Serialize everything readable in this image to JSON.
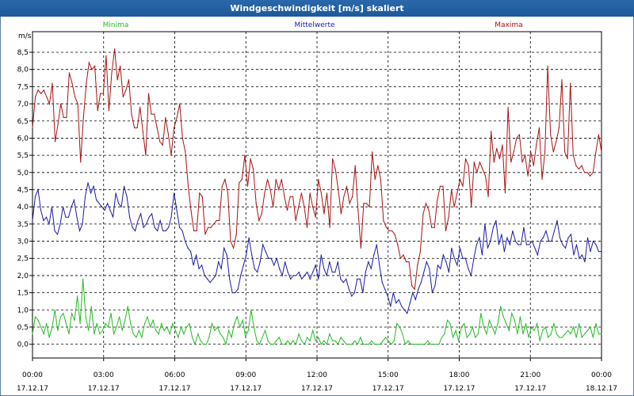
{
  "window": {
    "title": "Windgeschwindigkeit [m/s] skaliert"
  },
  "chart_data": {
    "type": "line",
    "title": "Windgeschwindigkeit [m/s] skaliert",
    "ylabel": "m/s",
    "xlabel": "",
    "ylim": [
      -0.4,
      9.1
    ],
    "xlim": [
      0,
      24
    ],
    "y_ticks": [
      "0,0",
      "0,5",
      "1,0",
      "1,5",
      "2,0",
      "2,5",
      "3,0",
      "3,5",
      "4,0",
      "4,5",
      "5,0",
      "5,5",
      "6,0",
      "6,5",
      "7,0",
      "7,5",
      "8,0",
      "8,5"
    ],
    "x_ticks": [
      {
        "time": "00:00",
        "date": "17.12.17"
      },
      {
        "time": "03:00",
        "date": "17.12.17"
      },
      {
        "time": "06:00",
        "date": "17.12.17"
      },
      {
        "time": "09:00",
        "date": "17.12.17"
      },
      {
        "time": "12:00",
        "date": "17.12.17"
      },
      {
        "time": "15:00",
        "date": "17.12.17"
      },
      {
        "time": "18:00",
        "date": "17.12.17"
      },
      {
        "time": "21:00",
        "date": "17.12.17"
      },
      {
        "time": "00:00",
        "date": "18.12.17"
      }
    ],
    "grid": true,
    "legend": "top",
    "series": [
      {
        "name": "Minima",
        "color": "#22bb22",
        "values": [
          0.3,
          0.8,
          0.7,
          0.5,
          0.3,
          0.6,
          0.2,
          0.5,
          1.0,
          0.4,
          0.8,
          0.9,
          0.6,
          0.3,
          0.9,
          0.7,
          1.4,
          0.6,
          1.9,
          0.8,
          0.4,
          1.1,
          0.3,
          0.6,
          0.3,
          0.4,
          0.6,
          0.5,
          0.9,
          0.3,
          0.5,
          0.8,
          0.4,
          0.7,
          1.1,
          0.6,
          0.3,
          0.2,
          0.4,
          0.2,
          0.6,
          0.8,
          0.5,
          0.7,
          0.4,
          0.3,
          0.6,
          0.4,
          0.5,
          0.3,
          0.6,
          0.4,
          0.2,
          0.5,
          0.3,
          0.5,
          0.6,
          0.2,
          0.0,
          0.3,
          0.1,
          0.0,
          0.0,
          0.2,
          0.6,
          0.4,
          0.5,
          0.3,
          0.2,
          0.0,
          0.4,
          0.2,
          0.6,
          0.8,
          0.5,
          0.7,
          0.2,
          0.4,
          1.0,
          0.5,
          0.1,
          0.0,
          0.2,
          0.4,
          0.1,
          0.0,
          0.0,
          0.1,
          0.2,
          0.0,
          0.0,
          0.1,
          0.0,
          0.1,
          0.0,
          0.3,
          0.1,
          0.0,
          0.2,
          0.1,
          0.4,
          0.1,
          0.2,
          0.0,
          0.1,
          0.0,
          0.3,
          0.1,
          0.1,
          0.0,
          0.2,
          0.1,
          0.0,
          0.0,
          0.0,
          0.1,
          0.0,
          0.2,
          0.0,
          0.0,
          0.0,
          0.1,
          0.0,
          0.0,
          0.0,
          0.1,
          0.2,
          0.1,
          0.0,
          0.1,
          0.6,
          0.5,
          0.3,
          0.0,
          0.1,
          0.0,
          0.0,
          0.0,
          0.0,
          0.0,
          0.0,
          0.1,
          0.0,
          0.0,
          0.0,
          0.0,
          0.2,
          0.3,
          0.7,
          0.6,
          0.2,
          0.4,
          0.1,
          0.5,
          0.6,
          0.2,
          0.3,
          0.5,
          0.2,
          0.3,
          0.9,
          0.5,
          0.3,
          0.7,
          0.5,
          0.3,
          0.6,
          1.1,
          0.8,
          0.6,
          0.4,
          0.9,
          0.7,
          0.3,
          0.8,
          0.3,
          0.6,
          0.2,
          0.5,
          0.4,
          0.6,
          0.1,
          0.4,
          0.5,
          0.2,
          0.3,
          0.6,
          0.3,
          0.2,
          0.2,
          0.3,
          0.4,
          0.3,
          0.5,
          0.2,
          0.6,
          0.2,
          0.3,
          0.4,
          0.5,
          0.2,
          0.6,
          0.3,
          0.3
        ]
      },
      {
        "name": "Mittelwerte",
        "color": "#1a1aa8",
        "values": [
          3.6,
          4.3,
          4.5,
          3.9,
          3.6,
          3.7,
          3.5,
          4.0,
          3.3,
          3.2,
          3.5,
          4.0,
          3.7,
          3.7,
          4.0,
          4.2,
          3.7,
          3.3,
          3.5,
          4.3,
          4.7,
          4.4,
          4.6,
          4.2,
          4.1,
          4.0,
          3.9,
          4.1,
          3.9,
          3.7,
          4.4,
          4.1,
          4.0,
          4.6,
          4.3,
          3.7,
          3.4,
          3.3,
          3.6,
          3.8,
          3.4,
          3.5,
          3.7,
          3.8,
          3.4,
          3.3,
          3.6,
          3.3,
          3.3,
          3.4,
          3.7,
          4.4,
          3.9,
          3.4,
          3.3,
          3.0,
          2.8,
          2.7,
          2.3,
          2.6,
          2.2,
          2.3,
          2.0,
          1.9,
          1.8,
          1.9,
          2.0,
          2.4,
          2.2,
          2.8,
          2.6,
          1.9,
          1.5,
          1.5,
          1.6,
          2.0,
          2.3,
          2.6,
          3.1,
          2.6,
          2.2,
          2.1,
          2.4,
          2.9,
          2.7,
          2.5,
          2.5,
          2.3,
          2.5,
          2.2,
          2.0,
          2.4,
          2.1,
          1.9,
          2.0,
          2.0,
          2.1,
          1.9,
          2.0,
          2.1,
          1.9,
          2.1,
          2.3,
          1.9,
          2.6,
          2.2,
          2.0,
          2.4,
          2.1,
          2.1,
          2.4,
          1.9,
          1.8,
          1.9,
          1.6,
          1.4,
          1.5,
          1.9,
          1.9,
          1.5,
          2.1,
          2.4,
          2.2,
          2.6,
          2.9,
          2.3,
          1.8,
          1.6,
          1.4,
          1.1,
          1.5,
          1.2,
          1.3,
          1.1,
          1.0,
          0.9,
          1.2,
          1.5,
          1.3,
          1.6,
          1.8,
          2.1,
          2.4,
          2.2,
          1.5,
          1.7,
          2.3,
          2.2,
          2.6,
          2.4,
          2.1,
          2.8,
          2.5,
          2.3,
          2.8,
          2.5,
          2.5,
          2.2,
          2.0,
          2.5,
          2.9,
          3.1,
          2.6,
          3.5,
          2.8,
          3.0,
          3.4,
          3.6,
          2.9,
          3.2,
          2.7,
          3.1,
          2.9,
          3.3,
          3.0,
          2.9,
          2.9,
          3.4,
          2.9,
          2.9,
          3.0,
          2.8,
          2.6,
          3.0,
          3.1,
          3.3,
          3.0,
          3.0,
          3.3,
          3.6,
          3.1,
          2.9,
          2.8,
          3.1,
          3.2,
          2.6,
          2.9,
          2.5,
          2.6,
          2.4,
          3.1,
          2.7,
          3.0,
          2.9,
          2.7,
          2.7
        ]
      },
      {
        "name": "Maxima",
        "color": "#aa1111",
        "values": [
          6.3,
          7.2,
          7.4,
          7.3,
          7.4,
          7.2,
          7.0,
          7.6,
          5.9,
          6.4,
          7.0,
          6.6,
          6.6,
          7.9,
          7.6,
          7.2,
          7.0,
          5.3,
          6.6,
          7.6,
          8.2,
          8.0,
          8.1,
          6.8,
          7.3,
          7.3,
          8.4,
          6.8,
          7.9,
          8.6,
          7.7,
          8.1,
          7.2,
          7.4,
          7.7,
          6.7,
          6.3,
          6.3,
          6.9,
          6.2,
          5.5,
          7.3,
          6.7,
          6.7,
          6.3,
          5.9,
          5.8,
          6.6,
          6.1,
          5.5,
          6.3,
          6.6,
          7.0,
          6.0,
          5.6,
          4.6,
          3.9,
          3.3,
          3.3,
          4.4,
          4.3,
          3.2,
          3.4,
          3.4,
          3.5,
          3.6,
          3.6,
          4.6,
          4.8,
          4.4,
          3.0,
          2.8,
          3.2,
          4.7,
          4.8,
          5.5,
          4.6,
          5.4,
          5.1,
          4.1,
          3.6,
          3.8,
          4.4,
          4.8,
          4.5,
          4.0,
          4.8,
          4.5,
          4.8,
          4.3,
          3.9,
          4.3,
          4.3,
          3.6,
          4.0,
          4.4,
          4.0,
          3.4,
          4.4,
          4.0,
          3.7,
          4.8,
          4.4,
          3.8,
          4.4,
          3.4,
          5.4,
          5.1,
          4.5,
          3.8,
          4.3,
          4.6,
          4.1,
          4.3,
          5.2,
          3.9,
          2.8,
          4.1,
          4.1,
          4.0,
          5.6,
          4.8,
          5.2,
          4.8,
          3.6,
          3.4,
          3.3,
          3.3,
          3.2,
          2.9,
          2.5,
          2.6,
          2.4,
          2.4,
          1.7,
          1.6,
          2.3,
          2.7,
          3.8,
          4.1,
          3.9,
          3.4,
          3.4,
          4.2,
          4.6,
          4.6,
          3.3,
          3.7,
          4.5,
          4.0,
          4.4,
          4.8,
          4.6,
          5.4,
          5.2,
          4.0,
          5.3,
          5.0,
          5.3,
          5.1,
          4.9,
          4.3,
          6.2,
          5.3,
          5.7,
          5.4,
          5.8,
          4.4,
          6.9,
          5.3,
          5.6,
          6.0,
          6.1,
          5.3,
          5.5,
          4.9,
          5.6,
          5.2,
          5.8,
          6.3,
          4.8,
          5.6,
          8.1,
          6.1,
          5.6,
          5.9,
          6.3,
          7.7,
          5.6,
          5.4,
          7.6,
          5.5,
          5.2,
          5.1,
          5.2,
          5.0,
          5.0,
          4.9,
          5.0,
          5.6,
          6.1,
          5.6
        ]
      }
    ]
  }
}
